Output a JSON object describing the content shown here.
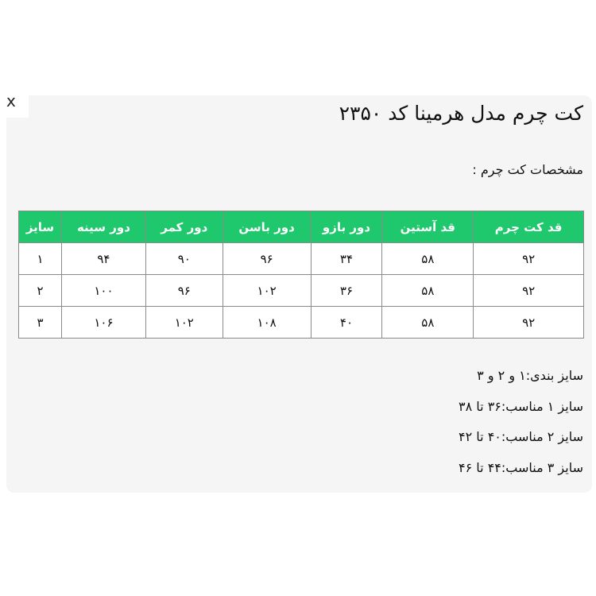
{
  "close_label": "x",
  "title": "کت چرم مدل هرمینا کد ۲۳۵۰",
  "subtitle": "مشخصات کت چرم :",
  "table": {
    "headers": [
      "قد کت چرم",
      "قد آستین",
      "دور بازو",
      "دور باسن",
      "دور کمر",
      "دور سینه",
      "سایز"
    ],
    "rows": [
      [
        "۹۲",
        "۵۸",
        "۳۴",
        "۹۶",
        "۹۰",
        "۹۴",
        "۱"
      ],
      [
        "۹۲",
        "۵۸",
        "۳۶",
        "۱۰۲",
        "۹۶",
        "۱۰۰",
        "۲"
      ],
      [
        "۹۲",
        "۵۸",
        "۴۰",
        "۱۰۸",
        "۱۰۲",
        "۱۰۶",
        "۳"
      ]
    ]
  },
  "notes": [
    "سایز بندی:۱ و ۲ و ۳",
    "سایز ۱ مناسب:۳۶ تا ۳۸",
    "سایز ۲ مناسب:۴۰ تا ۴۲",
    "سایز ۳ مناسب:۴۴ تا ۴۶"
  ],
  "colors": {
    "header_bg": "#1fc86c",
    "panel_bg": "#f5f5f5"
  }
}
